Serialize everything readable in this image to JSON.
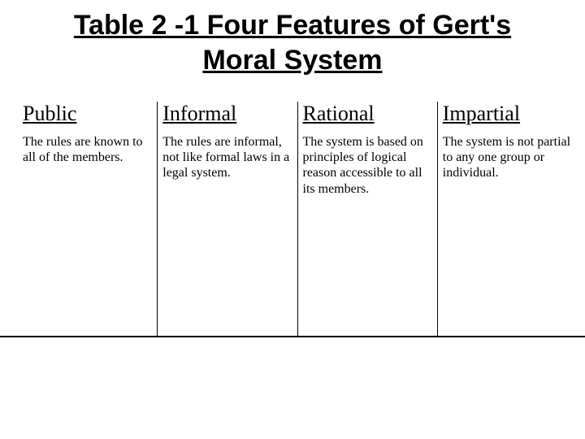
{
  "title": "Table 2 -1  Four Features of Gert's Moral System",
  "columns": [
    {
      "header": "Public",
      "body": "The rules  are known to all of the members."
    },
    {
      "header": "Informal",
      "body": "The rules are informal, not like formal laws in a legal system."
    },
    {
      "header": "Rational",
      "body": "The system is based on principles of logical reason accessible to all its members."
    },
    {
      "header": "Impartial",
      "body": "The system is not partial to any one group or individual."
    }
  ],
  "styling": {
    "background_color": "#ffffff",
    "text_color": "#000000",
    "title_fontsize": 34,
    "title_font": "Arial",
    "title_weight": "bold",
    "title_underline": true,
    "header_fontsize": 26,
    "header_font": "Times New Roman",
    "header_underline": true,
    "body_fontsize": 16,
    "body_font": "Times New Roman",
    "column_count": 4,
    "column_divider_color": "#000000",
    "bottom_border_color": "#000000"
  }
}
